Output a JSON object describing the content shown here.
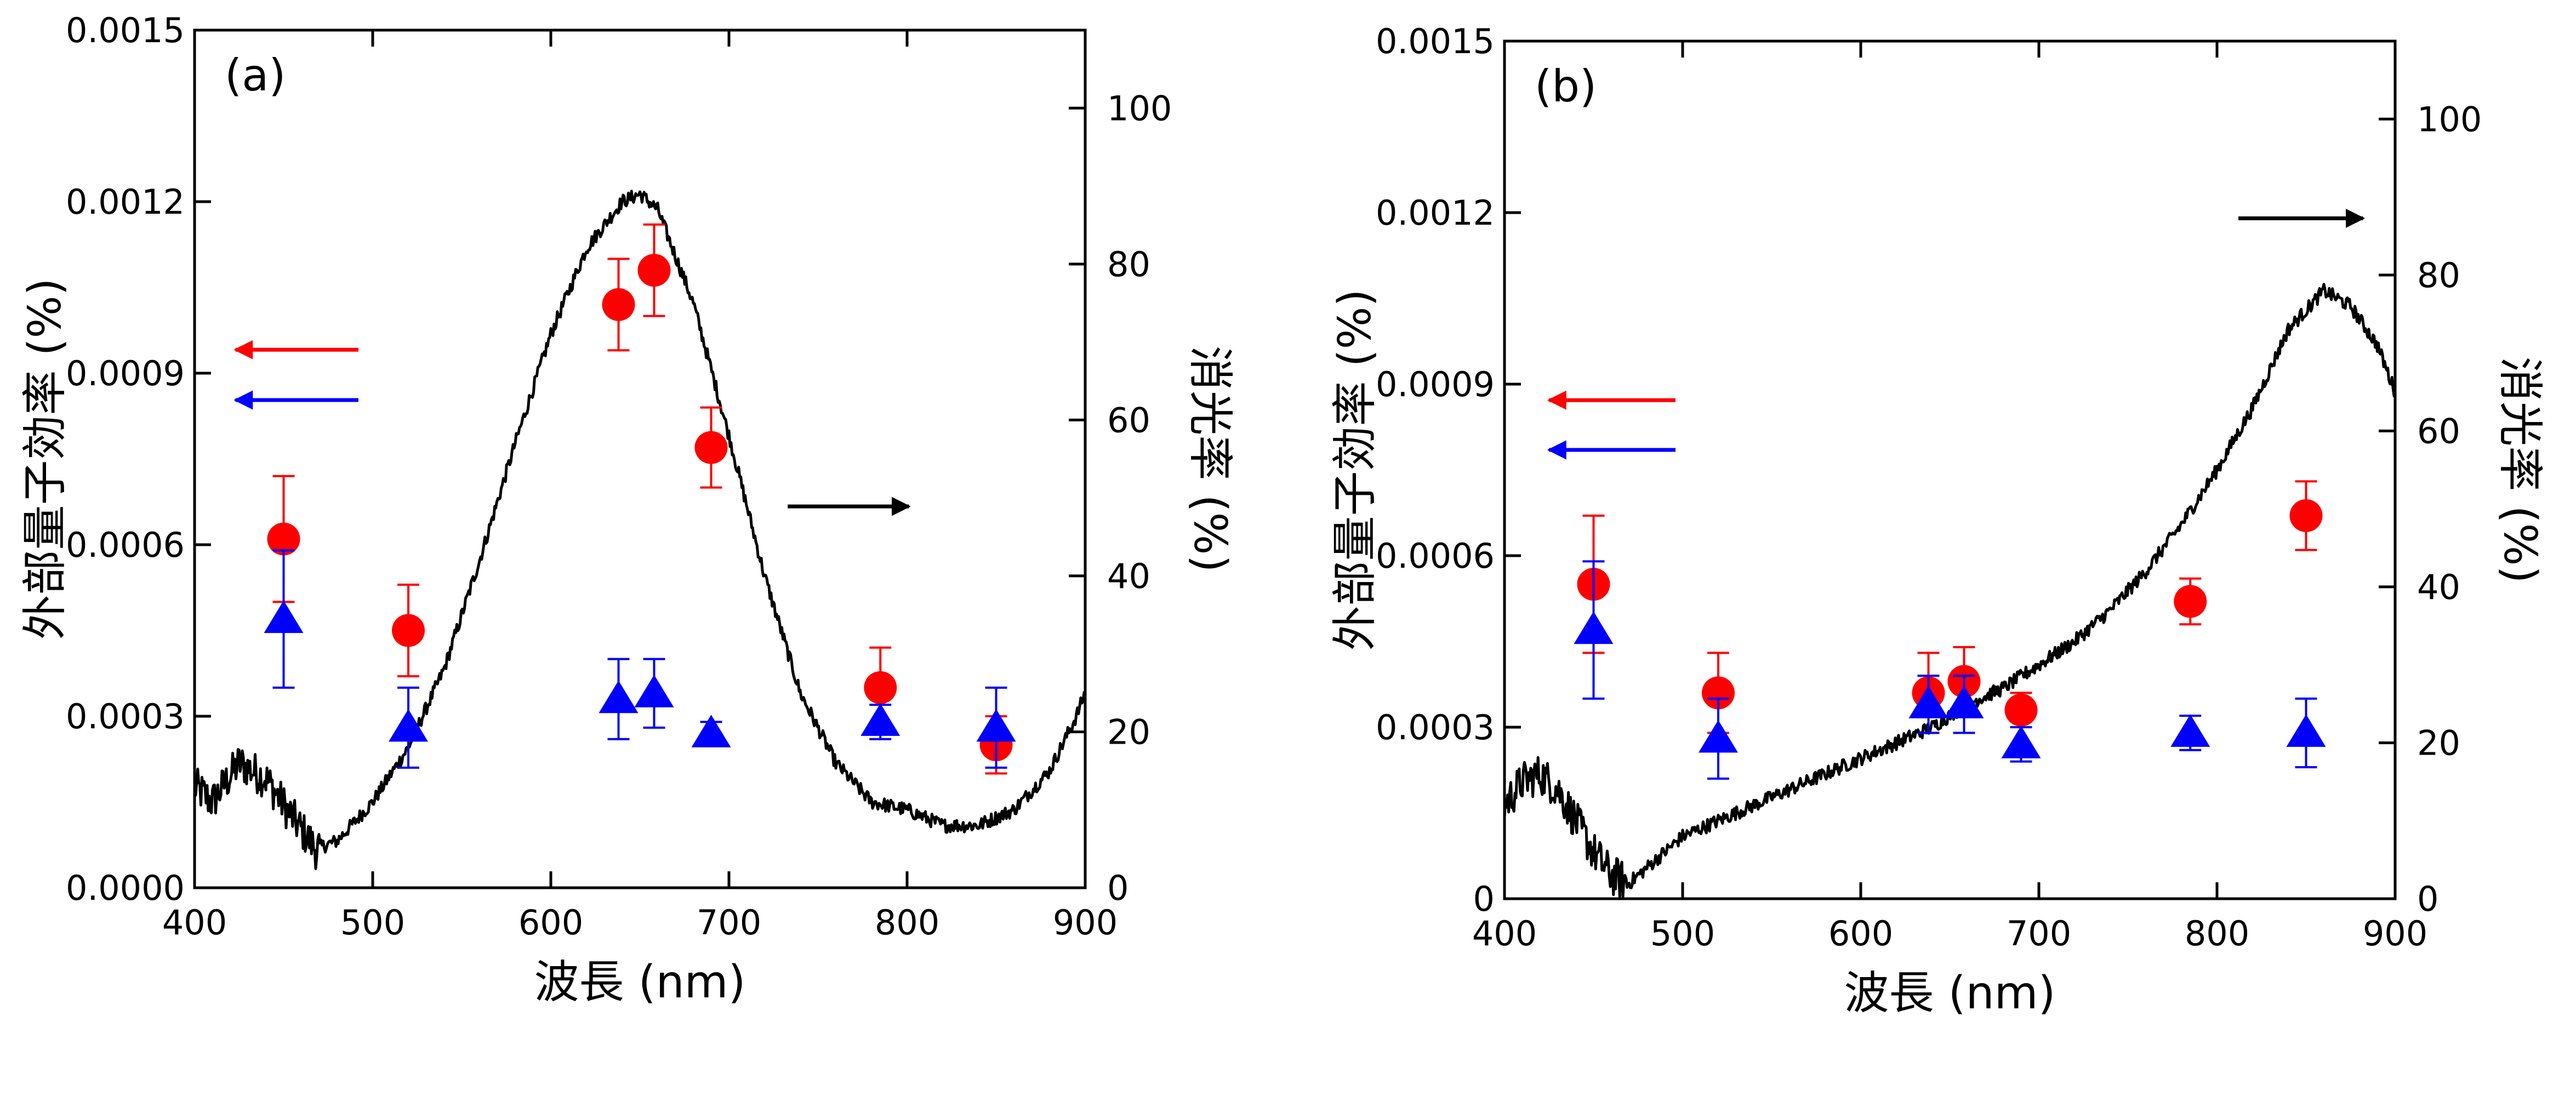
{
  "chart_data": [
    {
      "type": "scatter",
      "panel_label": "(a)",
      "xlabel": "波長 (nm)",
      "ylabel_left": "外部量子効率 (%)",
      "ylabel_right": "消光率 (%)",
      "xlim": [
        400,
        900
      ],
      "ylim_left": [
        0,
        0.0015
      ],
      "ylim_right": [
        0,
        110
      ],
      "x_ticks": [
        "400",
        "500",
        "600",
        "700",
        "800",
        "900"
      ],
      "y_left_ticks": [
        "0.0000",
        "0.0003",
        "0.0006",
        "0.0009",
        "0.0012",
        "0.0015"
      ],
      "y_right_ticks": [
        "0",
        "20",
        "40",
        "60",
        "80",
        "100"
      ],
      "grid": false,
      "series": [
        {
          "marker": "circle",
          "color": "#ff0000",
          "axis": "left",
          "points": [
            {
              "x": 450,
              "y": 0.00061,
              "err": 0.00011
            },
            {
              "x": 520,
              "y": 0.00045,
              "err": 8e-05
            },
            {
              "x": 638,
              "y": 0.00102,
              "err": 8e-05
            },
            {
              "x": 658,
              "y": 0.00108,
              "err": 8e-05
            },
            {
              "x": 690,
              "y": 0.00077,
              "err": 7e-05
            },
            {
              "x": 785,
              "y": 0.00035,
              "err": 7e-05
            },
            {
              "x": 850,
              "y": 0.00025,
              "err": 5e-05
            }
          ]
        },
        {
          "marker": "triangle",
          "color": "#0000ff",
          "axis": "left",
          "points": [
            {
              "x": 450,
              "y": 0.00047,
              "err": 0.00012
            },
            {
              "x": 520,
              "y": 0.00028,
              "err": 7e-05
            },
            {
              "x": 638,
              "y": 0.00033,
              "err": 7e-05
            },
            {
              "x": 658,
              "y": 0.00034,
              "err": 6e-05
            },
            {
              "x": 690,
              "y": 0.00027,
              "err": 2e-05
            },
            {
              "x": 785,
              "y": 0.00029,
              "err": 3e-05
            },
            {
              "x": 850,
              "y": 0.00028,
              "err": 7e-05
            }
          ]
        },
        {
          "type": "line",
          "color": "#000000",
          "axis": "right",
          "points": [
            [
              400,
              13
            ],
            [
              410,
              11
            ],
            [
              425,
              16
            ],
            [
              440,
              14
            ],
            [
              455,
              9
            ],
            [
              468,
              5
            ],
            [
              480,
              6
            ],
            [
              500,
              11
            ],
            [
              520,
              18
            ],
            [
              540,
              28
            ],
            [
              560,
              42
            ],
            [
              580,
              57
            ],
            [
              600,
              71
            ],
            [
              620,
              82
            ],
            [
              640,
              88
            ],
            [
              650,
              89
            ],
            [
              660,
              87
            ],
            [
              680,
              75
            ],
            [
              700,
              58
            ],
            [
              720,
              40
            ],
            [
              740,
              25
            ],
            [
              760,
              16
            ],
            [
              780,
              11
            ],
            [
              800,
              10
            ],
            [
              820,
              8
            ],
            [
              840,
              8
            ],
            [
              860,
              10
            ],
            [
              880,
              15
            ],
            [
              895,
              22
            ],
            [
              900,
              25
            ]
          ]
        }
      ],
      "annotations": [
        {
          "type": "arrow",
          "direction": "left",
          "color": "#ff0000",
          "x_from": 492,
          "x_to": 423,
          "y": 0.000941
        },
        {
          "type": "arrow",
          "direction": "left",
          "color": "#0000ff",
          "x_from": 492,
          "x_to": 423,
          "y": 0.000853
        },
        {
          "type": "arrow",
          "direction": "right",
          "color": "#000000",
          "x_from": 733,
          "x_to": 801,
          "y": 0.000667
        }
      ]
    },
    {
      "type": "scatter",
      "panel_label": "(b)",
      "xlabel": "波長 (nm)",
      "ylabel_left": "外部量子効率 (%)",
      "ylabel_right": "消光率 (%)",
      "xlim": [
        400,
        900
      ],
      "ylim_left": [
        0,
        0.0015
      ],
      "ylim_right": [
        0,
        110
      ],
      "x_ticks": [
        "400",
        "500",
        "600",
        "700",
        "800",
        "900"
      ],
      "y_left_ticks": [
        "0",
        "0.0003",
        "0.0006",
        "0.0009",
        "0.0012",
        "0.0015"
      ],
      "y_right_ticks": [
        "0",
        "20",
        "40",
        "60",
        "80",
        "100"
      ],
      "grid": false,
      "series": [
        {
          "marker": "circle",
          "color": "#ff0000",
          "axis": "left",
          "points": [
            {
              "x": 450,
              "y": 0.00055,
              "err": 0.00012
            },
            {
              "x": 520,
              "y": 0.00036,
              "err": 7e-05
            },
            {
              "x": 638,
              "y": 0.00036,
              "err": 7e-05
            },
            {
              "x": 658,
              "y": 0.00038,
              "err": 6e-05
            },
            {
              "x": 690,
              "y": 0.00033,
              "err": 3e-05
            },
            {
              "x": 785,
              "y": 0.00052,
              "err": 4e-05
            },
            {
              "x": 850,
              "y": 0.00067,
              "err": 6e-05
            }
          ]
        },
        {
          "marker": "triangle",
          "color": "#0000ff",
          "axis": "left",
          "points": [
            {
              "x": 450,
              "y": 0.00047,
              "err": 0.00012
            },
            {
              "x": 520,
              "y": 0.00028,
              "err": 7e-05
            },
            {
              "x": 638,
              "y": 0.00034,
              "err": 5e-05
            },
            {
              "x": 658,
              "y": 0.00034,
              "err": 5e-05
            },
            {
              "x": 690,
              "y": 0.00027,
              "err": 3e-05
            },
            {
              "x": 785,
              "y": 0.00029,
              "err": 3e-05
            },
            {
              "x": 850,
              "y": 0.00029,
              "err": 6e-05
            }
          ]
        },
        {
          "type": "line",
          "color": "#000000",
          "axis": "right",
          "points": [
            [
              400,
              12
            ],
            [
              410,
              15
            ],
            [
              420,
              16
            ],
            [
              430,
              14
            ],
            [
              440,
              10
            ],
            [
              450,
              6
            ],
            [
              460,
              3
            ],
            [
              470,
              2
            ],
            [
              480,
              4
            ],
            [
              500,
              8
            ],
            [
              520,
              10
            ],
            [
              540,
              12
            ],
            [
              560,
              14
            ],
            [
              580,
              16
            ],
            [
              600,
              18
            ],
            [
              620,
              20
            ],
            [
              640,
              22
            ],
            [
              660,
              25
            ],
            [
              680,
              27
            ],
            [
              700,
              30
            ],
            [
              720,
              33
            ],
            [
              740,
              37
            ],
            [
              760,
              42
            ],
            [
              780,
              48
            ],
            [
              800,
              55
            ],
            [
              820,
              63
            ],
            [
              840,
              73
            ],
            [
              860,
              78
            ],
            [
              875,
              76
            ],
            [
              890,
              71
            ],
            [
              900,
              65
            ]
          ]
        }
      ],
      "annotations": [
        {
          "type": "arrow",
          "direction": "left",
          "color": "#ff0000",
          "x_from": 496,
          "x_to": 425,
          "y": 0.000872
        },
        {
          "type": "arrow",
          "direction": "left",
          "color": "#0000ff",
          "x_from": 496,
          "x_to": 425,
          "y": 0.000785
        },
        {
          "type": "arrow",
          "direction": "right",
          "color": "#000000",
          "x_from": 812,
          "x_to": 882,
          "y": 0.00119
        }
      ]
    }
  ]
}
